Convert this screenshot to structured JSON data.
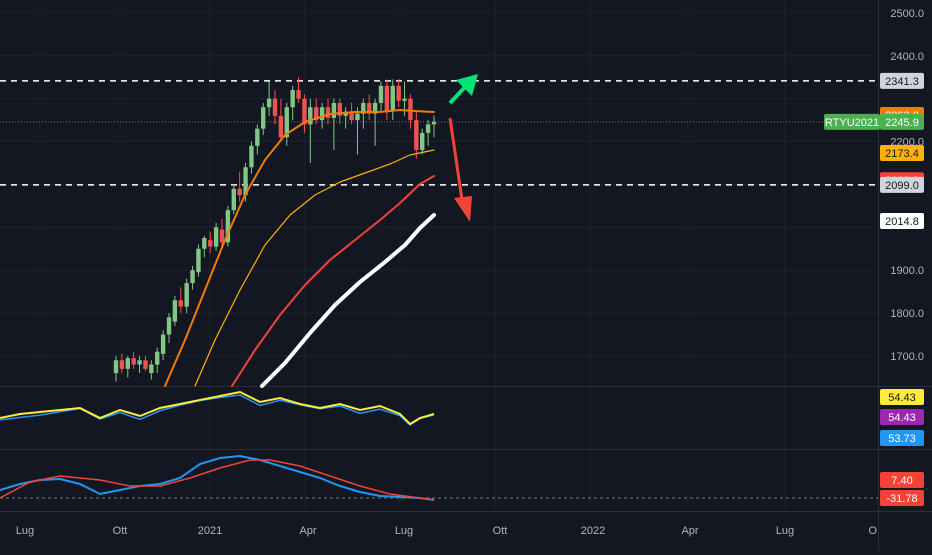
{
  "chart_data": {
    "type": "candlestick",
    "symbol": "RTYU2021",
    "price_axis": {
      "ticks": [
        "2500.0",
        "2400.0",
        "2200.0",
        "1900.0",
        "1800.0",
        "1700.0"
      ],
      "tick_values": [
        2500,
        2400,
        2200,
        1900,
        1800,
        1700
      ],
      "range": [
        1630,
        2530
      ]
    },
    "time_axis": {
      "labels": [
        "Lug",
        "Ott",
        "2021",
        "Apr",
        "Lug",
        "Ott",
        "2022",
        "Apr",
        "Lug",
        "O"
      ]
    },
    "horizontal_lines": [
      {
        "value": 2341.3,
        "style": "dashed",
        "color": "#ffffff"
      },
      {
        "value": 2099.0,
        "style": "dashed",
        "color": "#ffffff"
      }
    ],
    "price_labels": [
      {
        "text": "2341.3",
        "value": 2341.3,
        "bg": "#d1d4dc",
        "fg": "#131722"
      },
      {
        "text": "2262.0",
        "value": 2262.0,
        "bg": "#f57c00",
        "fg": "#ffffff"
      },
      {
        "text": "2245.9",
        "value": 2245.9,
        "bg": "#4caf50",
        "fg": "#ffffff",
        "prefix": "RTYU2021"
      },
      {
        "text": "2173.4",
        "value": 2173.4,
        "bg": "#ffb300",
        "fg": "#131722"
      },
      {
        "text": "2109.8",
        "value": 2109.8,
        "bg": "#f44336",
        "fg": "#ffffff"
      },
      {
        "text": "2099.0",
        "value": 2099.0,
        "bg": "#d1d4dc",
        "fg": "#131722"
      },
      {
        "text": "2014.8",
        "value": 2014.8,
        "bg": "#ffffff",
        "fg": "#131722"
      }
    ],
    "moving_averages": [
      {
        "color": "#f57c00",
        "last": 2262.0
      },
      {
        "color": "#ffb300",
        "last": 2173.4
      },
      {
        "color": "#f44336",
        "last": 2109.8
      },
      {
        "color": "#ffffff",
        "last": 2014.8
      }
    ],
    "arrows": [
      {
        "direction": "up",
        "color": "#00e676"
      },
      {
        "direction": "down",
        "color": "#f44336"
      }
    ],
    "candles": [
      {
        "o": 1660,
        "h": 1700,
        "l": 1640,
        "c": 1690
      },
      {
        "o": 1690,
        "h": 1705,
        "l": 1660,
        "c": 1670
      },
      {
        "o": 1670,
        "h": 1700,
        "l": 1650,
        "c": 1695
      },
      {
        "o": 1695,
        "h": 1710,
        "l": 1670,
        "c": 1680
      },
      {
        "o": 1680,
        "h": 1700,
        "l": 1660,
        "c": 1690
      },
      {
        "o": 1690,
        "h": 1700,
        "l": 1665,
        "c": 1670
      },
      {
        "o": 1660,
        "h": 1690,
        "l": 1645,
        "c": 1680
      },
      {
        "o": 1680,
        "h": 1720,
        "l": 1660,
        "c": 1710
      },
      {
        "o": 1705,
        "h": 1760,
        "l": 1690,
        "c": 1750
      },
      {
        "o": 1750,
        "h": 1800,
        "l": 1730,
        "c": 1790
      },
      {
        "o": 1780,
        "h": 1840,
        "l": 1770,
        "c": 1830
      },
      {
        "o": 1830,
        "h": 1860,
        "l": 1800,
        "c": 1815
      },
      {
        "o": 1815,
        "h": 1880,
        "l": 1800,
        "c": 1870
      },
      {
        "o": 1870,
        "h": 1910,
        "l": 1855,
        "c": 1900
      },
      {
        "o": 1895,
        "h": 1960,
        "l": 1885,
        "c": 1950
      },
      {
        "o": 1950,
        "h": 1980,
        "l": 1930,
        "c": 1975
      },
      {
        "o": 1970,
        "h": 1990,
        "l": 1940,
        "c": 1955
      },
      {
        "o": 1955,
        "h": 2010,
        "l": 1945,
        "c": 2000
      },
      {
        "o": 1995,
        "h": 2020,
        "l": 1950,
        "c": 1965
      },
      {
        "o": 1965,
        "h": 2050,
        "l": 1955,
        "c": 2040
      },
      {
        "o": 2040,
        "h": 2100,
        "l": 2030,
        "c": 2090
      },
      {
        "o": 2090,
        "h": 2130,
        "l": 2060,
        "c": 2075
      },
      {
        "o": 2075,
        "h": 2150,
        "l": 2060,
        "c": 2140
      },
      {
        "o": 2140,
        "h": 2200,
        "l": 2125,
        "c": 2190
      },
      {
        "o": 2190,
        "h": 2240,
        "l": 2170,
        "c": 2230
      },
      {
        "o": 2230,
        "h": 2290,
        "l": 2215,
        "c": 2280
      },
      {
        "o": 2280,
        "h": 2340,
        "l": 2260,
        "c": 2300
      },
      {
        "o": 2300,
        "h": 2320,
        "l": 2240,
        "c": 2260
      },
      {
        "o": 2260,
        "h": 2300,
        "l": 2200,
        "c": 2210
      },
      {
        "o": 2210,
        "h": 2290,
        "l": 2190,
        "c": 2280
      },
      {
        "o": 2280,
        "h": 2330,
        "l": 2250,
        "c": 2320
      },
      {
        "o": 2320,
        "h": 2350,
        "l": 2290,
        "c": 2300
      },
      {
        "o": 2300,
        "h": 2310,
        "l": 2220,
        "c": 2240
      },
      {
        "o": 2240,
        "h": 2300,
        "l": 2150,
        "c": 2280
      },
      {
        "o": 2280,
        "h": 2300,
        "l": 2240,
        "c": 2250
      },
      {
        "o": 2250,
        "h": 2290,
        "l": 2230,
        "c": 2280
      },
      {
        "o": 2280,
        "h": 2300,
        "l": 2240,
        "c": 2255
      },
      {
        "o": 2255,
        "h": 2300,
        "l": 2180,
        "c": 2290
      },
      {
        "o": 2290,
        "h": 2300,
        "l": 2240,
        "c": 2260
      },
      {
        "o": 2260,
        "h": 2280,
        "l": 2230,
        "c": 2270
      },
      {
        "o": 2270,
        "h": 2290,
        "l": 2240,
        "c": 2250
      },
      {
        "o": 2250,
        "h": 2280,
        "l": 2170,
        "c": 2265
      },
      {
        "o": 2265,
        "h": 2300,
        "l": 2230,
        "c": 2290
      },
      {
        "o": 2290,
        "h": 2310,
        "l": 2250,
        "c": 2265
      },
      {
        "o": 2265,
        "h": 2300,
        "l": 2190,
        "c": 2290
      },
      {
        "o": 2290,
        "h": 2340,
        "l": 2270,
        "c": 2330
      },
      {
        "o": 2330,
        "h": 2345,
        "l": 2250,
        "c": 2270
      },
      {
        "o": 2270,
        "h": 2345,
        "l": 2250,
        "c": 2330
      },
      {
        "o": 2330,
        "h": 2345,
        "l": 2280,
        "c": 2295
      },
      {
        "o": 2295,
        "h": 2340,
        "l": 2260,
        "c": 2300
      },
      {
        "o": 2300,
        "h": 2310,
        "l": 2230,
        "c": 2250
      },
      {
        "o": 2250,
        "h": 2270,
        "l": 2160,
        "c": 2180
      },
      {
        "o": 2180,
        "h": 2230,
        "l": 2170,
        "c": 2220
      },
      {
        "o": 2220,
        "h": 2250,
        "l": 2190,
        "c": 2240
      },
      {
        "o": 2240,
        "h": 2260,
        "l": 2210,
        "c": 2246
      }
    ],
    "oscillator_1": {
      "labels": [
        {
          "text": "54.43",
          "bg": "#ffeb3b",
          "fg": "#131722"
        },
        {
          "text": "54.43",
          "bg": "#9c27b0",
          "fg": "#ffffff"
        },
        {
          "text": "53.73",
          "bg": "#2196f3",
          "fg": "#ffffff"
        }
      ]
    },
    "oscillator_2": {
      "labels": [
        {
          "text": "7.40",
          "bg": "#f44336",
          "fg": "#ffffff"
        },
        {
          "text": "-31.78",
          "bg": "#f44336",
          "fg": "#ffffff"
        }
      ]
    },
    "colors": {
      "background": "#131722",
      "grid": "#1e2230",
      "up": "#81c784",
      "down": "#ef5350",
      "axis_text": "#b2b5be"
    }
  }
}
